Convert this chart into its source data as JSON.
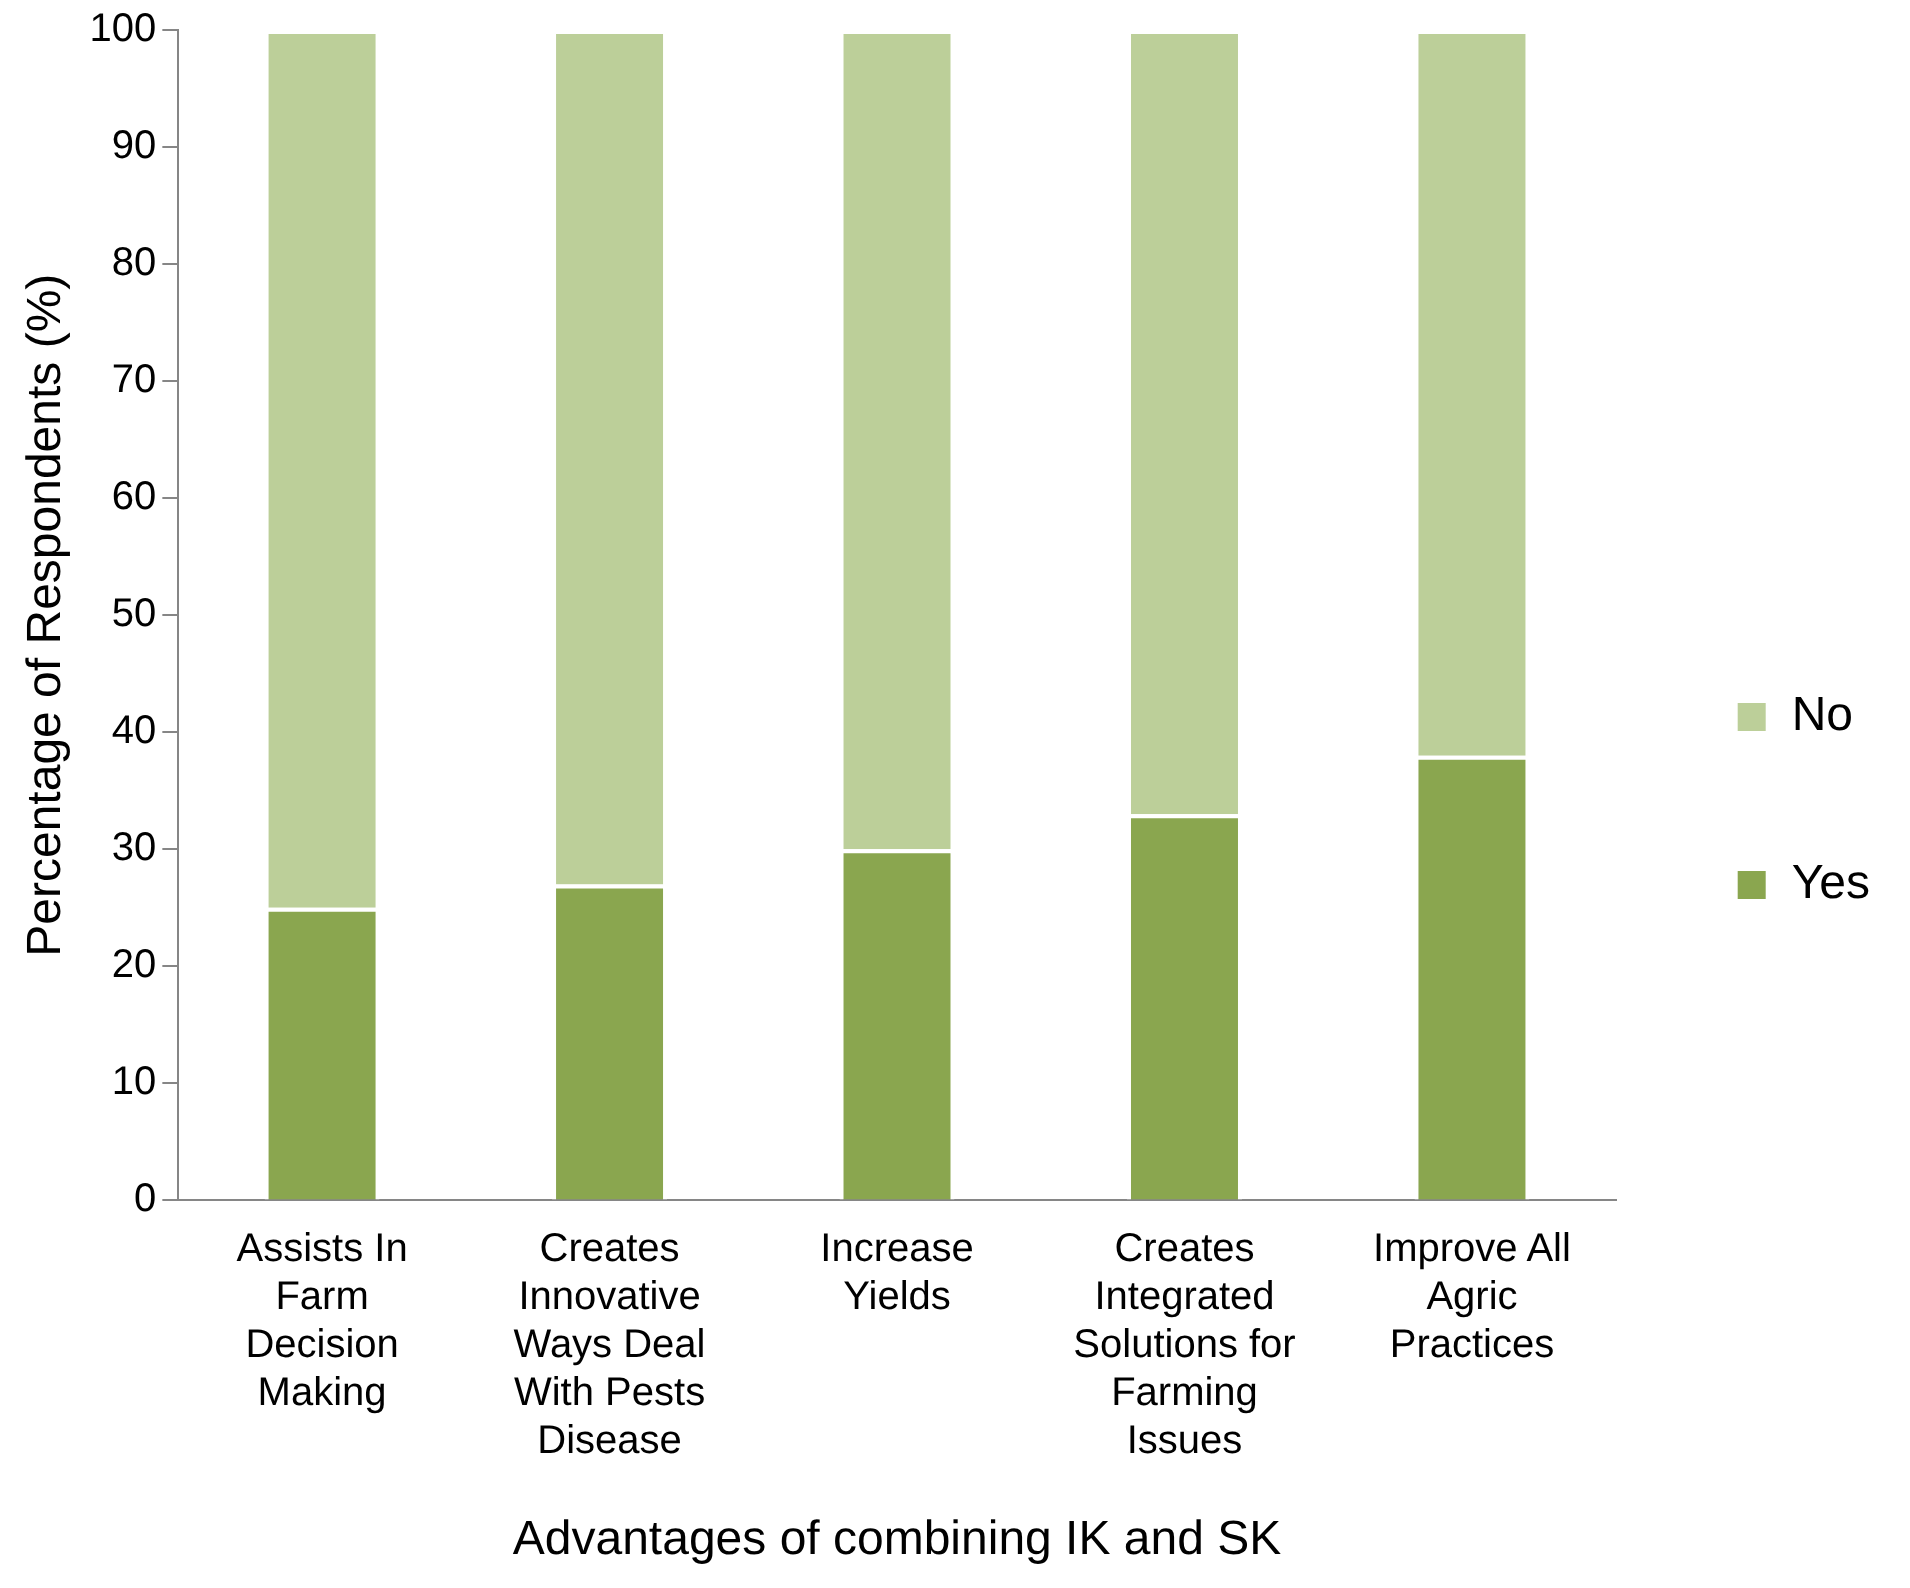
{
  "chart_data": {
    "type": "bar",
    "stacked": true,
    "xlabel": "Advantages of combining IK and SK",
    "ylabel": "Percentage of Respondents (%)",
    "categories": [
      "Assists In Farm Decision Making",
      "Creates Innovative Ways Deal With Pests Disease",
      "Increase Yields",
      "Creates Integrated Solutions for Farming Issues",
      "Improve All Agric Practices"
    ],
    "series": [
      {
        "name": "Yes",
        "color": "#8aa64f",
        "values": [
          25,
          27,
          30,
          33,
          38
        ]
      },
      {
        "name": "No",
        "color": "#bccf99",
        "values": [
          75,
          73,
          70,
          67,
          62
        ]
      }
    ],
    "ylim": [
      0,
      100
    ],
    "yticks": [
      0,
      10,
      20,
      30,
      40,
      50,
      60,
      70,
      80,
      90,
      100
    ],
    "grid": false,
    "legend": "right"
  }
}
